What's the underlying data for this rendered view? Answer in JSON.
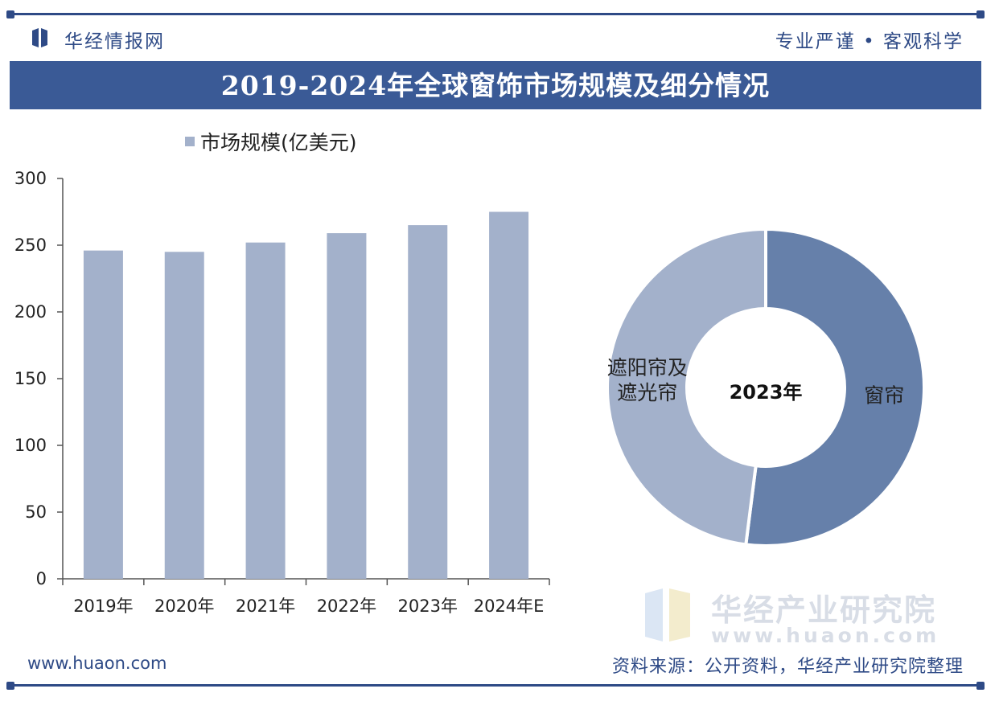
{
  "header": {
    "brand": "华经情报网",
    "slogan": "专业严谨 • 客观科学",
    "title": "2019-2024年全球窗饰市场规模及细分情况"
  },
  "footer": {
    "url": "www.huaon.com",
    "source": "资料来源：公开资料，华经产业研究院整理"
  },
  "watermark": {
    "text": "华经产业研究院",
    "url": "www.huaon.com"
  },
  "colors": {
    "bar": "#a3b1cb",
    "donut_curtains": "#6680aa",
    "donut_shades": "#a3b1cb",
    "navy": "#2e4a86"
  },
  "chart_data": [
    {
      "type": "bar",
      "categories": [
        "2019年",
        "2020年",
        "2021年",
        "2022年",
        "2023年",
        "2024年E"
      ],
      "series": [
        {
          "name": "市场规模(亿美元)",
          "values": [
            246,
            245,
            252,
            259,
            265,
            275
          ]
        }
      ],
      "ylim": [
        0,
        300
      ],
      "yticks": [
        0,
        50,
        100,
        150,
        200,
        250,
        300
      ],
      "legend": "top-left"
    },
    {
      "type": "pie",
      "title": "2023年",
      "labels": [
        "窗帘",
        "遮阳帘及遮光帘"
      ],
      "values": [
        52,
        48
      ],
      "label_lines": [
        [
          "窗帘"
        ],
        [
          "遮阳帘及",
          "遮光帘"
        ]
      ]
    }
  ]
}
